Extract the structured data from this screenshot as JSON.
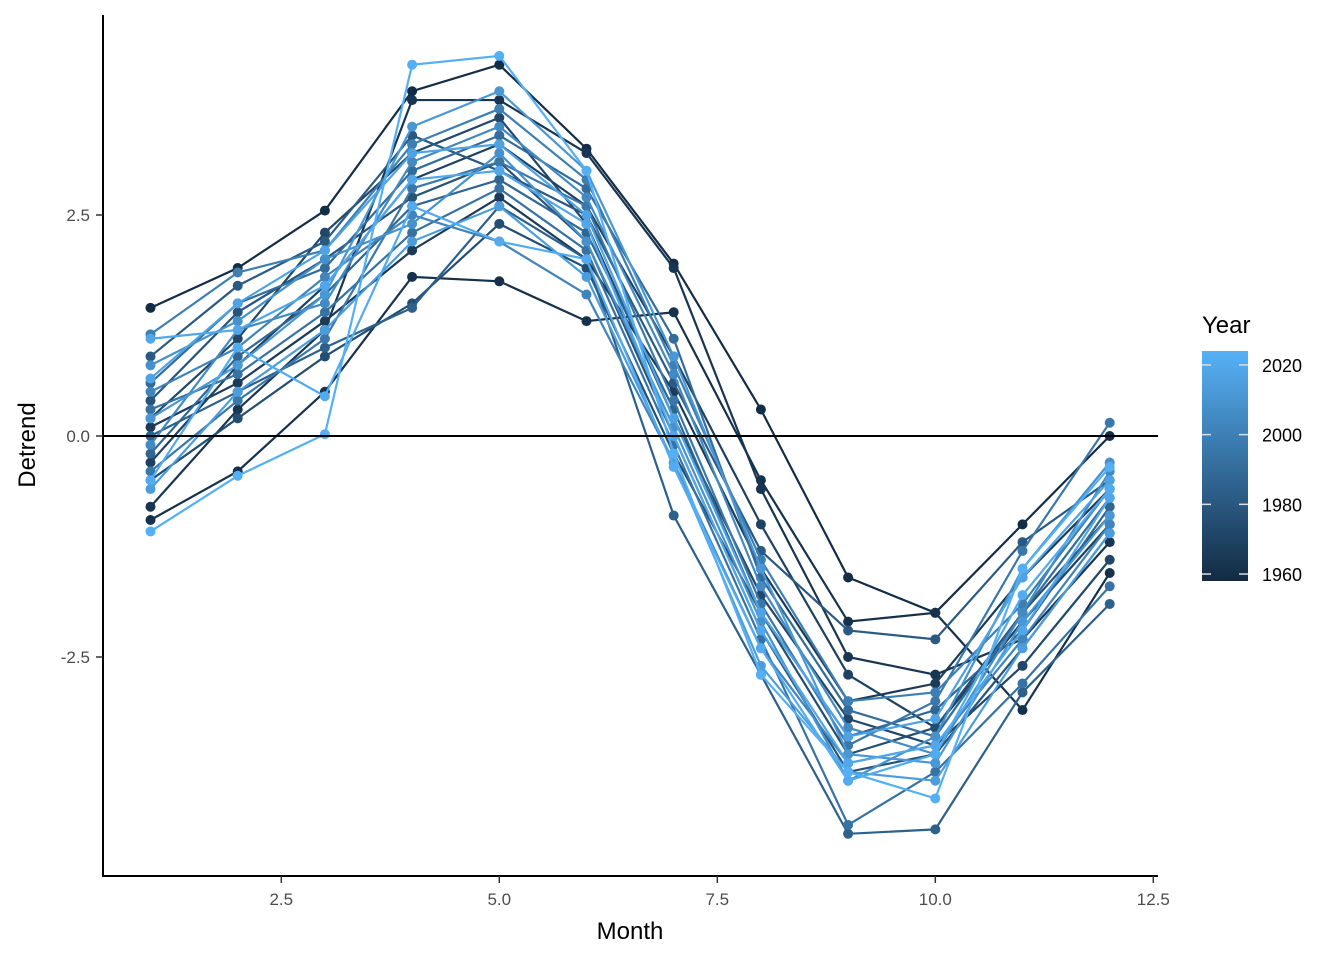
{
  "chart_data": {
    "type": "line",
    "title": "",
    "xlabel": "Month",
    "ylabel": "Detrend",
    "xlim": [
      0.5,
      12.55
    ],
    "ylim": [
      -4.97,
      4.76
    ],
    "xticks": [
      2.5,
      5.0,
      7.5,
      10.0,
      12.5
    ],
    "xtick_labels": [
      "2.5",
      "5.0",
      "7.5",
      "10.0",
      "12.5"
    ],
    "yticks": [
      -2.5,
      0.0,
      2.5
    ],
    "ytick_labels": [
      "-2.5",
      "0.0",
      "2.5"
    ],
    "hline": 0,
    "grid": false,
    "legend": {
      "title": "Year",
      "placement": "right",
      "type": "colorbar",
      "range": [
        1958,
        2024
      ],
      "ticks": [
        1960,
        1980,
        2000,
        2020
      ],
      "tick_labels": [
        "1960",
        "1980",
        "2000",
        "2020"
      ],
      "low_color": "#132B43",
      "high_color": "#56B1F7"
    },
    "x": [
      1,
      2,
      3,
      4,
      5,
      6,
      7,
      8,
      9,
      10,
      11,
      12
    ],
    "series": [
      {
        "year": 1959,
        "values": [
          1.45,
          1.9,
          2.55,
          3.9,
          4.2,
          3.25,
          1.95,
          0.3,
          -1.6,
          -2.0,
          -1.0,
          0.0
        ]
      },
      {
        "year": 1961,
        "values": [
          -0.95,
          -0.4,
          0.5,
          1.8,
          1.75,
          1.3,
          1.4,
          -0.5,
          -2.1,
          -2.0,
          -3.1,
          -1.55
        ]
      },
      {
        "year": 1963,
        "values": [
          -0.8,
          0.3,
          1.2,
          3.8,
          3.8,
          3.2,
          1.9,
          -0.6,
          -2.5,
          -2.7,
          -2.3,
          -1.2
        ]
      },
      {
        "year": 1966,
        "values": [
          0.1,
          0.6,
          1.3,
          2.1,
          2.7,
          2.0,
          0.5,
          -1.5,
          -3.0,
          -2.8,
          -1.6,
          -0.6
        ]
      },
      {
        "year": 1969,
        "values": [
          -0.3,
          0.8,
          1.7,
          2.9,
          3.3,
          2.6,
          0.9,
          -1.0,
          -2.7,
          -3.3,
          -2.1,
          -1.0
        ]
      },
      {
        "year": 1972,
        "values": [
          0.2,
          1.1,
          2.3,
          3.2,
          3.6,
          2.4,
          0.2,
          -1.8,
          -3.2,
          -3.5,
          -2.6,
          -1.4
        ]
      },
      {
        "year": 1975,
        "values": [
          -0.5,
          0.2,
          0.9,
          1.5,
          2.4,
          1.9,
          -0.2,
          -2.0,
          -3.6,
          -3.3,
          -2.0,
          -0.9
        ]
      },
      {
        "year": 1978,
        "values": [
          0.4,
          1.4,
          2.0,
          2.7,
          3.1,
          2.2,
          0.0,
          -2.2,
          -3.8,
          -3.6,
          -2.4,
          -1.1
        ]
      },
      {
        "year": 1981,
        "values": [
          0.9,
          1.7,
          2.2,
          3.4,
          3.0,
          2.5,
          0.6,
          -1.3,
          -2.2,
          -2.3,
          -1.2,
          -0.5
        ]
      },
      {
        "year": 1984,
        "values": [
          0.0,
          0.5,
          1.0,
          1.45,
          2.6,
          2.0,
          -0.9,
          -2.7,
          -4.5,
          -4.45,
          -2.9,
          -1.9
        ]
      },
      {
        "year": 1987,
        "values": [
          -0.2,
          0.9,
          1.6,
          2.6,
          2.9,
          2.3,
          0.3,
          -2.0,
          -3.4,
          -3.1,
          -2.2,
          -0.8
        ]
      },
      {
        "year": 1990,
        "values": [
          0.6,
          1.5,
          1.9,
          3.0,
          3.4,
          2.8,
          1.1,
          -1.6,
          -3.1,
          -3.4,
          -2.0,
          -0.7
        ]
      },
      {
        "year": 1993,
        "values": [
          0.3,
          0.7,
          1.4,
          2.3,
          2.8,
          2.1,
          -0.1,
          -2.3,
          -4.4,
          -3.8,
          -2.8,
          -1.7
        ]
      },
      {
        "year": 1996,
        "values": [
          -0.4,
          0.4,
          1.1,
          2.8,
          3.1,
          2.6,
          0.4,
          -1.9,
          -3.5,
          -3.0,
          -1.3,
          0.15
        ]
      },
      {
        "year": 1999,
        "values": [
          1.15,
          1.85,
          2.1,
          3.3,
          3.7,
          2.9,
          0.8,
          -1.4,
          -3.0,
          -2.9,
          -1.9,
          -0.6
        ]
      },
      {
        "year": 2002,
        "values": [
          0.5,
          1.0,
          1.8,
          2.5,
          2.2,
          1.6,
          -0.3,
          -2.4,
          -3.7,
          -3.5,
          -2.3,
          -1.0
        ]
      },
      {
        "year": 2005,
        "values": [
          -0.1,
          1.2,
          1.5,
          3.1,
          3.5,
          2.7,
          0.7,
          -1.7,
          -3.3,
          -3.6,
          -2.0,
          -0.4
        ]
      },
      {
        "year": 2008,
        "values": [
          0.8,
          1.3,
          2.0,
          2.4,
          3.2,
          2.2,
          0.1,
          -2.1,
          -3.9,
          -3.4,
          -1.5,
          -0.3
        ]
      },
      {
        "year": 2011,
        "values": [
          0.2,
          0.8,
          1.6,
          3.5,
          3.9,
          3.0,
          0.9,
          -1.5,
          -3.6,
          -3.7,
          -2.1,
          -0.9
        ]
      },
      {
        "year": 2014,
        "values": [
          -0.6,
          0.5,
          1.2,
          2.2,
          2.6,
          1.8,
          -0.3,
          -2.6,
          -3.8,
          -3.9,
          -2.4,
          -1.1
        ]
      },
      {
        "year": 2017,
        "values": [
          0.65,
          1.5,
          2.1,
          3.2,
          3.3,
          2.5,
          0.2,
          -2.0,
          -3.4,
          -3.2,
          -1.6,
          -0.5
        ]
      },
      {
        "year": 2019,
        "values": [
          1.1,
          1.2,
          1.7,
          2.9,
          3.0,
          2.4,
          0.0,
          -2.2,
          -3.7,
          -3.5,
          -2.2,
          -0.7
        ]
      },
      {
        "year": 2021,
        "values": [
          -0.5,
          1.0,
          0.45,
          2.6,
          2.2,
          2.0,
          -0.35,
          -2.4,
          -3.9,
          -3.6,
          -1.8,
          -0.6
        ]
      },
      {
        "year": 2023,
        "values": [
          -1.08,
          -0.45,
          0.02,
          4.2,
          4.3,
          3.0,
          -0.2,
          -2.7,
          -3.8,
          -4.1,
          -1.5,
          -0.35
        ]
      }
    ]
  }
}
